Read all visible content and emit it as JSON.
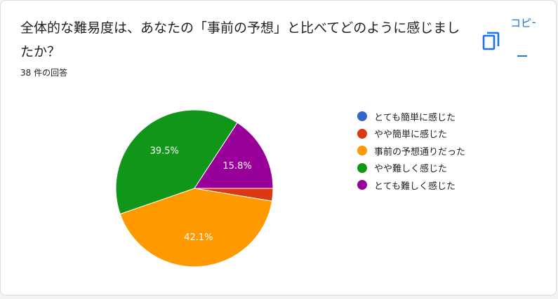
{
  "question": {
    "title": "全体的な難易度は、あなたの「事前の予想」と比べてどのように感じましたか？",
    "response_count": "38 件の回答"
  },
  "actions": {
    "copy_label": "コピー",
    "copy_icon": "copy-icon"
  },
  "chart_data": {
    "type": "pie",
    "categories": [
      "とても簡単に感じた",
      "やや簡単に感じた",
      "事前の予想通りだった",
      "やや難しく感じた",
      "とても難しく感じた"
    ],
    "values": [
      0.0,
      2.6,
      42.1,
      39.5,
      15.8
    ],
    "unit": "%",
    "colors": [
      "#3366cc",
      "#dc3912",
      "#ff9900",
      "#109618",
      "#990099"
    ],
    "data_labels": [
      "",
      "",
      "42.1%",
      "39.5%",
      "15.8%"
    ],
    "legend_position": "right"
  }
}
